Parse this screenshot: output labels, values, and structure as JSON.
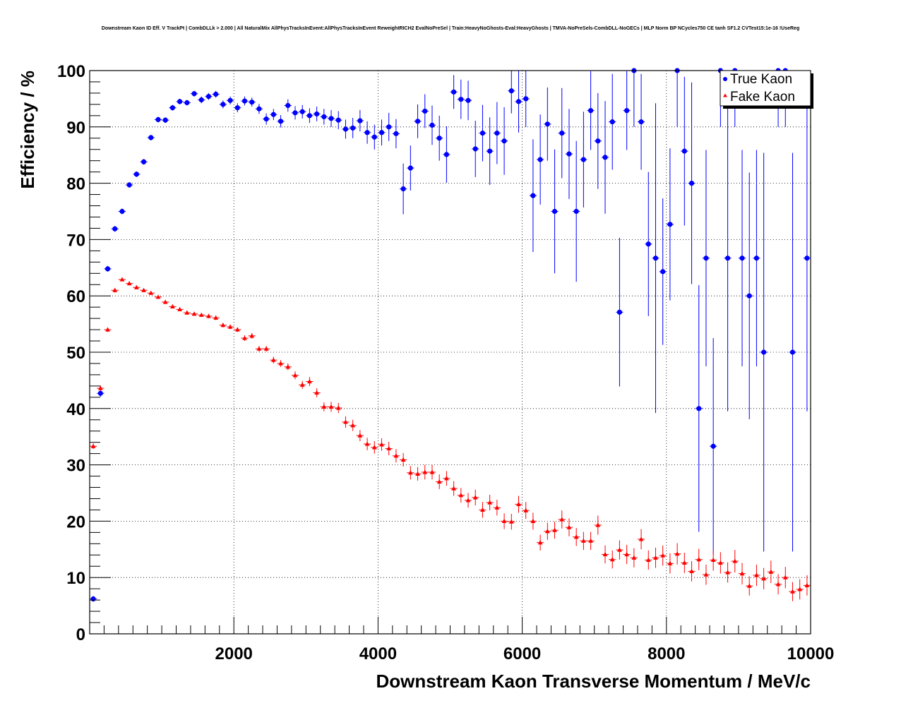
{
  "chart_data": {
    "type": "scatter",
    "title": "Downstream Kaon ID Eff. V TrackPt | CombDLLk > 2.000 | All NaturalMix AllPhysTracksInEvent:AllPhysTracksInEvent ReweightRICH2 EvalNoPreSel | Train:HeavyNoGhosts-Eval:HeavyGhosts | TMVA-NoPreSels-CombDLL-NoGECs | MLP Norm BP NCycles750 CE tanh SF1.2 CVTest15:1e-16 !UseReg",
    "xlabel": "Downstream Kaon Transverse Momentum / MeV/c",
    "ylabel": "Efficiency / %",
    "xlim": [
      0,
      10000
    ],
    "ylim": [
      0,
      100
    ],
    "x_ticks": [
      2000,
      4000,
      6000,
      8000,
      10000
    ],
    "y_ticks": [
      0,
      10,
      20,
      30,
      40,
      50,
      60,
      70,
      80,
      90,
      100
    ],
    "grid": true,
    "legend_position": "top-right",
    "bin_width": 100,
    "series": [
      {
        "name": "True Kaon",
        "marker": "circle",
        "color": "#0000ff",
        "points": [
          {
            "x": 50,
            "y": 6.2,
            "err": 0.5
          },
          {
            "x": 150,
            "y": 42.7,
            "err": 0.6
          },
          {
            "x": 250,
            "y": 64.8,
            "err": 0.5
          },
          {
            "x": 350,
            "y": 71.9,
            "err": 0.5
          },
          {
            "x": 450,
            "y": 75.0,
            "err": 0.5
          },
          {
            "x": 550,
            "y": 79.7,
            "err": 0.5
          },
          {
            "x": 650,
            "y": 81.6,
            "err": 0.5
          },
          {
            "x": 750,
            "y": 83.8,
            "err": 0.5
          },
          {
            "x": 850,
            "y": 88.1,
            "err": 0.5
          },
          {
            "x": 950,
            "y": 91.3,
            "err": 0.5
          },
          {
            "x": 1050,
            "y": 91.2,
            "err": 0.5
          },
          {
            "x": 1150,
            "y": 93.4,
            "err": 0.5
          },
          {
            "x": 1250,
            "y": 94.5,
            "err": 0.5
          },
          {
            "x": 1350,
            "y": 94.3,
            "err": 0.5
          },
          {
            "x": 1450,
            "y": 95.9,
            "err": 0.5
          },
          {
            "x": 1550,
            "y": 94.8,
            "err": 0.6
          },
          {
            "x": 1650,
            "y": 95.4,
            "err": 0.6
          },
          {
            "x": 1750,
            "y": 95.8,
            "err": 0.6
          },
          {
            "x": 1850,
            "y": 94.0,
            "err": 0.7
          },
          {
            "x": 1950,
            "y": 94.7,
            "err": 0.7
          },
          {
            "x": 2050,
            "y": 93.4,
            "err": 0.8
          },
          {
            "x": 2150,
            "y": 94.6,
            "err": 0.8
          },
          {
            "x": 2250,
            "y": 94.4,
            "err": 0.8
          },
          {
            "x": 2350,
            "y": 93.2,
            "err": 0.9
          },
          {
            "x": 2450,
            "y": 91.4,
            "err": 1.0
          },
          {
            "x": 2550,
            "y": 92.2,
            "err": 1.0
          },
          {
            "x": 2650,
            "y": 91.0,
            "err": 1.1
          },
          {
            "x": 2750,
            "y": 93.8,
            "err": 1.1
          },
          {
            "x": 2850,
            "y": 92.5,
            "err": 1.2
          },
          {
            "x": 2950,
            "y": 92.7,
            "err": 1.2
          },
          {
            "x": 3050,
            "y": 92.0,
            "err": 1.3
          },
          {
            "x": 3150,
            "y": 92.3,
            "err": 1.3
          },
          {
            "x": 3250,
            "y": 91.8,
            "err": 1.4
          },
          {
            "x": 3350,
            "y": 91.5,
            "err": 1.5
          },
          {
            "x": 3450,
            "y": 91.2,
            "err": 1.6
          },
          {
            "x": 3550,
            "y": 89.6,
            "err": 1.7
          },
          {
            "x": 3650,
            "y": 89.8,
            "err": 1.8
          },
          {
            "x": 3750,
            "y": 91.1,
            "err": 1.9
          },
          {
            "x": 3850,
            "y": 89.0,
            "err": 2.0
          },
          {
            "x": 3950,
            "y": 88.2,
            "err": 2.2
          },
          {
            "x": 4050,
            "y": 89.0,
            "err": 2.3
          },
          {
            "x": 4150,
            "y": 90.0,
            "err": 2.5
          },
          {
            "x": 4250,
            "y": 88.8,
            "err": 2.6
          },
          {
            "x": 4350,
            "y": 79.0,
            "err": 4.5
          },
          {
            "x": 4450,
            "y": 82.7,
            "err": 4.0
          },
          {
            "x": 4550,
            "y": 91.0,
            "err": 3.0
          },
          {
            "x": 4650,
            "y": 92.8,
            "err": 3.0
          },
          {
            "x": 4750,
            "y": 90.3,
            "err": 3.5
          },
          {
            "x": 4850,
            "y": 88.0,
            "err": 4.0
          },
          {
            "x": 4950,
            "y": 85.1,
            "err": 5.0
          },
          {
            "x": 5050,
            "y": 96.2,
            "err": 3.0
          },
          {
            "x": 5150,
            "y": 94.9,
            "err": 3.5
          },
          {
            "x": 5250,
            "y": 94.7,
            "err": 3.5
          },
          {
            "x": 5350,
            "y": 86.1,
            "err": 5.0
          },
          {
            "x": 5450,
            "y": 88.9,
            "err": 5.0
          },
          {
            "x": 5550,
            "y": 85.7,
            "err": 6.0
          },
          {
            "x": 5650,
            "y": 88.9,
            "err": 5.5
          },
          {
            "x": 5750,
            "y": 87.5,
            "err": 6.0
          },
          {
            "x": 5850,
            "y": 96.4,
            "err": 4.0
          },
          {
            "x": 5950,
            "y": 94.5,
            "err": 5.5
          },
          {
            "x": 6050,
            "y": 95.0,
            "err": 5.0
          },
          {
            "x": 6150,
            "y": 77.8,
            "err": 10.0
          },
          {
            "x": 6250,
            "y": 84.2,
            "err": 8.0
          },
          {
            "x": 6350,
            "y": 90.5,
            "err": 6.5
          },
          {
            "x": 6450,
            "y": 75.0,
            "err": 11.0
          },
          {
            "x": 6550,
            "y": 88.9,
            "err": 8.0
          },
          {
            "x": 6650,
            "y": 85.2,
            "err": 8.0
          },
          {
            "x": 6750,
            "y": 75.0,
            "err": 12.5
          },
          {
            "x": 6850,
            "y": 84.2,
            "err": 8.5
          },
          {
            "x": 6950,
            "y": 92.9,
            "err": 7.0
          },
          {
            "x": 7050,
            "y": 87.5,
            "err": 8.5
          },
          {
            "x": 7150,
            "y": 84.6,
            "err": 10.0
          },
          {
            "x": 7250,
            "y": 90.9,
            "err": 8.5
          },
          {
            "x": 7350,
            "y": 57.1,
            "err": 13.2
          },
          {
            "x": 7450,
            "y": 92.9,
            "err": 7.0
          },
          {
            "x": 7550,
            "y": 100.0,
            "err": 10.0
          },
          {
            "x": 7650,
            "y": 90.9,
            "err": 8.5
          },
          {
            "x": 7750,
            "y": 69.2,
            "err": 12.8
          },
          {
            "x": 7850,
            "y": 66.7,
            "err": 27.5
          },
          {
            "x": 7950,
            "y": 64.3,
            "err": 13.0
          },
          {
            "x": 8050,
            "y": 72.7,
            "err": 13.5
          },
          {
            "x": 8150,
            "y": 100.0,
            "err": 10.0
          },
          {
            "x": 8250,
            "y": 85.7,
            "err": 13.2
          },
          {
            "x": 8350,
            "y": 80.0,
            "err": 17.9
          },
          {
            "x": 8450,
            "y": 40.0,
            "err": 21.9
          },
          {
            "x": 8550,
            "y": 66.7,
            "err": 19.2
          },
          {
            "x": 8650,
            "y": 33.3,
            "err": 19.2
          },
          {
            "x": 8750,
            "y": 100.0,
            "err": 10.0
          },
          {
            "x": 8850,
            "y": 66.7,
            "err": 27.2
          },
          {
            "x": 8950,
            "y": 100.0,
            "err": 10.0
          },
          {
            "x": 9050,
            "y": 66.7,
            "err": 19.2
          },
          {
            "x": 9150,
            "y": 60.0,
            "err": 21.9
          },
          {
            "x": 9250,
            "y": 66.7,
            "err": 19.2
          },
          {
            "x": 9350,
            "y": 50.0,
            "err": 35.4
          },
          {
            "x": 9550,
            "y": 100.0,
            "err": 10.0
          },
          {
            "x": 9650,
            "y": 100.0,
            "err": 10.0
          },
          {
            "x": 9750,
            "y": 50.0,
            "err": 35.4
          },
          {
            "x": 9950,
            "y": 66.7,
            "err": 27.2
          }
        ]
      },
      {
        "name": "Fake Kaon",
        "marker": "triangle",
        "color": "#ff0000",
        "points": [
          {
            "x": 50,
            "y": 33.3,
            "err": 0.5
          },
          {
            "x": 150,
            "y": 43.6,
            "err": 0.5
          },
          {
            "x": 250,
            "y": 54.0,
            "err": 0.4
          },
          {
            "x": 350,
            "y": 61.0,
            "err": 0.4
          },
          {
            "x": 450,
            "y": 62.9,
            "err": 0.3
          },
          {
            "x": 550,
            "y": 62.2,
            "err": 0.3
          },
          {
            "x": 650,
            "y": 61.5,
            "err": 0.3
          },
          {
            "x": 750,
            "y": 61.0,
            "err": 0.3
          },
          {
            "x": 850,
            "y": 60.5,
            "err": 0.3
          },
          {
            "x": 950,
            "y": 59.8,
            "err": 0.3
          },
          {
            "x": 1050,
            "y": 58.9,
            "err": 0.3
          },
          {
            "x": 1150,
            "y": 58.1,
            "err": 0.3
          },
          {
            "x": 1250,
            "y": 57.6,
            "err": 0.3
          },
          {
            "x": 1350,
            "y": 57.0,
            "err": 0.3
          },
          {
            "x": 1450,
            "y": 56.8,
            "err": 0.3
          },
          {
            "x": 1550,
            "y": 56.6,
            "err": 0.3
          },
          {
            "x": 1650,
            "y": 56.4,
            "err": 0.4
          },
          {
            "x": 1750,
            "y": 56.1,
            "err": 0.4
          },
          {
            "x": 1850,
            "y": 54.8,
            "err": 0.4
          },
          {
            "x": 1950,
            "y": 54.5,
            "err": 0.4
          },
          {
            "x": 2050,
            "y": 54.0,
            "err": 0.4
          },
          {
            "x": 2150,
            "y": 52.5,
            "err": 0.5
          },
          {
            "x": 2250,
            "y": 52.9,
            "err": 0.5
          },
          {
            "x": 2350,
            "y": 50.6,
            "err": 0.5
          },
          {
            "x": 2450,
            "y": 50.6,
            "err": 0.5
          },
          {
            "x": 2550,
            "y": 48.6,
            "err": 0.6
          },
          {
            "x": 2650,
            "y": 48.0,
            "err": 0.6
          },
          {
            "x": 2750,
            "y": 47.4,
            "err": 0.6
          },
          {
            "x": 2850,
            "y": 45.9,
            "err": 0.7
          },
          {
            "x": 2950,
            "y": 44.2,
            "err": 0.7
          },
          {
            "x": 3050,
            "y": 44.8,
            "err": 0.8
          },
          {
            "x": 3150,
            "y": 42.8,
            "err": 0.8
          },
          {
            "x": 3250,
            "y": 40.3,
            "err": 0.8
          },
          {
            "x": 3350,
            "y": 40.3,
            "err": 0.9
          },
          {
            "x": 3450,
            "y": 40.1,
            "err": 0.9
          },
          {
            "x": 3550,
            "y": 37.6,
            "err": 1.0
          },
          {
            "x": 3650,
            "y": 37.0,
            "err": 1.0
          },
          {
            "x": 3750,
            "y": 35.2,
            "err": 1.0
          },
          {
            "x": 3850,
            "y": 33.7,
            "err": 1.1
          },
          {
            "x": 3950,
            "y": 33.1,
            "err": 1.1
          },
          {
            "x": 4050,
            "y": 33.6,
            "err": 1.1
          },
          {
            "x": 4150,
            "y": 32.9,
            "err": 1.2
          },
          {
            "x": 4250,
            "y": 31.6,
            "err": 1.2
          },
          {
            "x": 4350,
            "y": 30.9,
            "err": 1.2
          },
          {
            "x": 4450,
            "y": 28.6,
            "err": 1.2
          },
          {
            "x": 4550,
            "y": 28.4,
            "err": 1.2
          },
          {
            "x": 4650,
            "y": 28.7,
            "err": 1.3
          },
          {
            "x": 4750,
            "y": 28.7,
            "err": 1.3
          },
          {
            "x": 4850,
            "y": 27.0,
            "err": 1.3
          },
          {
            "x": 4950,
            "y": 27.6,
            "err": 1.3
          },
          {
            "x": 5050,
            "y": 25.8,
            "err": 1.3
          },
          {
            "x": 5150,
            "y": 24.6,
            "err": 1.3
          },
          {
            "x": 5250,
            "y": 23.7,
            "err": 1.3
          },
          {
            "x": 5350,
            "y": 24.2,
            "err": 1.4
          },
          {
            "x": 5450,
            "y": 22.0,
            "err": 1.4
          },
          {
            "x": 5550,
            "y": 23.3,
            "err": 1.4
          },
          {
            "x": 5650,
            "y": 22.4,
            "err": 1.4
          },
          {
            "x": 5750,
            "y": 20.0,
            "err": 1.4
          },
          {
            "x": 5850,
            "y": 19.9,
            "err": 1.4
          },
          {
            "x": 5950,
            "y": 23.0,
            "err": 1.5
          },
          {
            "x": 6050,
            "y": 21.9,
            "err": 1.5
          },
          {
            "x": 6150,
            "y": 20.0,
            "err": 1.5
          },
          {
            "x": 6250,
            "y": 16.2,
            "err": 1.4
          },
          {
            "x": 6350,
            "y": 18.2,
            "err": 1.5
          },
          {
            "x": 6450,
            "y": 18.4,
            "err": 1.5
          },
          {
            "x": 6550,
            "y": 20.3,
            "err": 1.6
          },
          {
            "x": 6650,
            "y": 18.9,
            "err": 1.6
          },
          {
            "x": 6750,
            "y": 17.2,
            "err": 1.6
          },
          {
            "x": 6850,
            "y": 16.5,
            "err": 1.6
          },
          {
            "x": 6950,
            "y": 16.5,
            "err": 1.6
          },
          {
            "x": 7050,
            "y": 19.3,
            "err": 1.7
          },
          {
            "x": 7150,
            "y": 14.1,
            "err": 1.6
          },
          {
            "x": 7250,
            "y": 13.2,
            "err": 1.6
          },
          {
            "x": 7350,
            "y": 14.9,
            "err": 1.7
          },
          {
            "x": 7450,
            "y": 14.1,
            "err": 1.7
          },
          {
            "x": 7550,
            "y": 13.5,
            "err": 1.7
          },
          {
            "x": 7650,
            "y": 16.8,
            "err": 1.8
          },
          {
            "x": 7750,
            "y": 13.1,
            "err": 1.7
          },
          {
            "x": 7850,
            "y": 13.5,
            "err": 1.8
          },
          {
            "x": 7950,
            "y": 13.9,
            "err": 1.8
          },
          {
            "x": 8050,
            "y": 12.5,
            "err": 1.8
          },
          {
            "x": 8150,
            "y": 14.2,
            "err": 1.9
          },
          {
            "x": 8250,
            "y": 12.6,
            "err": 1.8
          },
          {
            "x": 8350,
            "y": 11.1,
            "err": 1.8
          },
          {
            "x": 8450,
            "y": 13.2,
            "err": 1.9
          },
          {
            "x": 8550,
            "y": 10.5,
            "err": 1.8
          },
          {
            "x": 8650,
            "y": 13.1,
            "err": 1.9
          },
          {
            "x": 8750,
            "y": 12.6,
            "err": 1.9
          },
          {
            "x": 8850,
            "y": 10.9,
            "err": 1.8
          },
          {
            "x": 8950,
            "y": 12.9,
            "err": 2.0
          },
          {
            "x": 9050,
            "y": 10.7,
            "err": 1.9
          },
          {
            "x": 9150,
            "y": 8.5,
            "err": 1.7
          },
          {
            "x": 9250,
            "y": 10.4,
            "err": 1.9
          },
          {
            "x": 9350,
            "y": 9.8,
            "err": 1.9
          },
          {
            "x": 9450,
            "y": 11.0,
            "err": 2.0
          },
          {
            "x": 9550,
            "y": 8.8,
            "err": 1.8
          },
          {
            "x": 9650,
            "y": 10.0,
            "err": 1.9
          },
          {
            "x": 9750,
            "y": 7.5,
            "err": 1.7
          },
          {
            "x": 9850,
            "y": 7.9,
            "err": 1.8
          },
          {
            "x": 9950,
            "y": 8.6,
            "err": 1.8
          }
        ]
      }
    ]
  }
}
